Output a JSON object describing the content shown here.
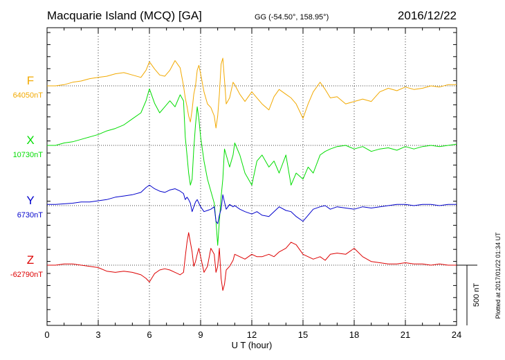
{
  "header": {
    "station": "Macquarie Island (MCQ)  [GA]",
    "coords": "GG (-54.50°, 158.95°)",
    "date": "2016/12/22"
  },
  "footer": {
    "plotted": "Plotted at 2017/01/22 01:34 UT"
  },
  "colors": {
    "F": "#f2a900",
    "X": "#00dd00",
    "Y": "#0000cc",
    "Z": "#dd0000",
    "axis": "#000000",
    "grid": "#000000"
  },
  "chart_data": {
    "type": "line",
    "xlabel": "U T (hour)",
    "xlim": [
      0,
      24
    ],
    "x_ticks": [
      0,
      3,
      6,
      9,
      12,
      15,
      18,
      21,
      24
    ],
    "scale_bar": {
      "label": "500 nT",
      "value_nT": 500
    },
    "units": "nT",
    "series": [
      {
        "name": "F",
        "baseline_label": "64050nT",
        "baseline_nT": 64050,
        "x": [
          0,
          0.5,
          1,
          1.5,
          2,
          2.5,
          3,
          3.5,
          4,
          4.5,
          5,
          5.5,
          5.8,
          6,
          6.3,
          6.6,
          6.9,
          7.2,
          7.5,
          7.8,
          8,
          8.1,
          8.2,
          8.3,
          8.4,
          8.5,
          8.6,
          8.7,
          8.8,
          8.9,
          9,
          9.2,
          9.4,
          9.6,
          9.8,
          9.9,
          10,
          10.1,
          10.2,
          10.3,
          10.4,
          10.5,
          10.7,
          10.9,
          11,
          11.3,
          11.6,
          12,
          12.3,
          12.6,
          13,
          13.3,
          13.6,
          14,
          14.3,
          14.6,
          15,
          15.3,
          15.6,
          16,
          16.3,
          16.6,
          17,
          17.5,
          18,
          18.5,
          19,
          19.5,
          20,
          20.5,
          21,
          21.5,
          22,
          22.5,
          23,
          23.5,
          24
        ],
        "y": [
          64050,
          64050,
          64060,
          64080,
          64090,
          64110,
          64120,
          64130,
          64150,
          64160,
          64140,
          64120,
          64180,
          64250,
          64190,
          64140,
          64130,
          64180,
          64260,
          64200,
          64050,
          63950,
          63880,
          63800,
          63750,
          63850,
          63980,
          64050,
          64180,
          64220,
          64150,
          64000,
          63900,
          63870,
          63800,
          63700,
          63800,
          63980,
          64230,
          64280,
          64100,
          63900,
          63950,
          64080,
          64060,
          63980,
          63920,
          64000,
          63950,
          63900,
          63850,
          63960,
          64020,
          63980,
          63950,
          63900,
          63780,
          63900,
          64000,
          64080,
          64020,
          63950,
          63960,
          63900,
          63920,
          63940,
          63920,
          64000,
          64030,
          64010,
          64040,
          64020,
          64030,
          64050,
          64040,
          64060,
          64060
        ]
      },
      {
        "name": "X",
        "baseline_label": "10730nT",
        "baseline_nT": 10730,
        "x": [
          0,
          0.5,
          1,
          1.5,
          2,
          2.5,
          3,
          3.5,
          4,
          4.5,
          5,
          5.5,
          5.8,
          6,
          6.3,
          6.6,
          6.9,
          7.2,
          7.5,
          7.8,
          8,
          8.1,
          8.2,
          8.3,
          8.4,
          8.5,
          8.6,
          8.7,
          8.8,
          8.9,
          9,
          9.2,
          9.4,
          9.6,
          9.8,
          9.9,
          10,
          10.1,
          10.2,
          10.3,
          10.4,
          10.5,
          10.7,
          10.9,
          11,
          11.3,
          11.6,
          12,
          12.3,
          12.6,
          13,
          13.3,
          13.6,
          14,
          14.3,
          14.6,
          15,
          15.3,
          15.6,
          16,
          16.3,
          16.6,
          17,
          17.5,
          18,
          18.5,
          19,
          19.5,
          20,
          20.5,
          21,
          21.5,
          22,
          22.5,
          23,
          23.5,
          24
        ],
        "y": [
          10730,
          10730,
          10750,
          10760,
          10780,
          10800,
          10820,
          10850,
          10870,
          10900,
          10950,
          11000,
          11100,
          11200,
          11080,
          11000,
          11050,
          11100,
          11050,
          11150,
          11100,
          10800,
          10650,
          10500,
          10400,
          10450,
          10700,
          10900,
          11050,
          10950,
          10800,
          10600,
          10450,
          10350,
          10250,
          10100,
          9900,
          10100,
          10300,
          10450,
          10700,
          10650,
          10550,
          10650,
          10750,
          10650,
          10500,
          10400,
          10600,
          10650,
          10550,
          10600,
          10500,
          10650,
          10400,
          10500,
          10450,
          10550,
          10500,
          10650,
          10680,
          10700,
          10720,
          10730,
          10700,
          10720,
          10680,
          10700,
          10710,
          10690,
          10720,
          10700,
          10720,
          10730,
          10720,
          10730,
          10740
        ]
      },
      {
        "name": "Y",
        "baseline_label": "6730nT",
        "baseline_nT": 6730,
        "x": [
          0,
          0.5,
          1,
          1.5,
          2,
          2.5,
          3,
          3.5,
          4,
          4.5,
          5,
          5.5,
          5.8,
          6,
          6.3,
          6.6,
          6.9,
          7.2,
          7.5,
          7.8,
          8,
          8.1,
          8.2,
          8.3,
          8.4,
          8.5,
          8.6,
          8.7,
          8.8,
          8.9,
          9,
          9.2,
          9.4,
          9.6,
          9.8,
          9.9,
          10,
          10.1,
          10.2,
          10.3,
          10.4,
          10.5,
          10.7,
          10.9,
          11,
          11.3,
          11.6,
          12,
          12.3,
          12.6,
          13,
          13.3,
          13.6,
          14,
          14.3,
          14.6,
          15,
          15.3,
          15.6,
          16,
          16.3,
          16.6,
          17,
          17.5,
          18,
          18.5,
          19,
          19.5,
          20,
          20.5,
          21,
          21.5,
          22,
          22.5,
          23,
          23.5,
          24
        ],
        "y": [
          6740,
          6740,
          6745,
          6750,
          6760,
          6760,
          6770,
          6780,
          6800,
          6810,
          6820,
          6840,
          6880,
          6900,
          6870,
          6850,
          6840,
          6860,
          6870,
          6850,
          6830,
          6780,
          6800,
          6780,
          6750,
          6680,
          6720,
          6760,
          6780,
          6750,
          6720,
          6680,
          6690,
          6700,
          6720,
          6600,
          6580,
          6650,
          6700,
          6820,
          6760,
          6700,
          6740,
          6720,
          6730,
          6700,
          6680,
          6660,
          6680,
          6650,
          6640,
          6680,
          6720,
          6690,
          6680,
          6640,
          6600,
          6650,
          6700,
          6720,
          6730,
          6700,
          6720,
          6710,
          6700,
          6720,
          6710,
          6720,
          6730,
          6740,
          6740,
          6730,
          6740,
          6740,
          6730,
          6740,
          6740
        ]
      },
      {
        "name": "Z",
        "baseline_label": "-62790nT",
        "baseline_nT": -62790,
        "x": [
          0,
          0.5,
          1,
          1.5,
          2,
          2.5,
          3,
          3.5,
          4,
          4.5,
          5,
          5.5,
          5.8,
          6,
          6.3,
          6.6,
          6.9,
          7.2,
          7.5,
          7.8,
          8,
          8.1,
          8.2,
          8.3,
          8.4,
          8.5,
          8.6,
          8.7,
          8.8,
          8.9,
          9,
          9.2,
          9.4,
          9.6,
          9.8,
          9.9,
          10,
          10.1,
          10.2,
          10.3,
          10.4,
          10.5,
          10.7,
          10.9,
          11,
          11.3,
          11.6,
          12,
          12.3,
          12.6,
          13,
          13.3,
          13.6,
          14,
          14.3,
          14.6,
          15,
          15.3,
          15.6,
          16,
          16.3,
          16.6,
          17,
          17.5,
          18,
          18.5,
          19,
          19.5,
          20,
          20.5,
          21,
          21.5,
          22,
          22.5,
          23,
          23.5,
          24
        ],
        "y": [
          -62790,
          -62790,
          -62780,
          -62780,
          -62790,
          -62800,
          -62810,
          -62840,
          -62850,
          -62840,
          -62850,
          -62870,
          -62900,
          -62930,
          -62860,
          -62830,
          -62820,
          -62830,
          -62850,
          -62870,
          -62850,
          -62720,
          -62600,
          -62520,
          -62600,
          -62680,
          -62800,
          -62760,
          -62700,
          -62650,
          -62720,
          -62850,
          -62800,
          -62650,
          -62700,
          -62850,
          -62800,
          -62650,
          -62900,
          -63000,
          -62950,
          -62830,
          -62800,
          -62750,
          -62700,
          -62720,
          -62740,
          -62700,
          -62720,
          -62720,
          -62700,
          -62720,
          -62680,
          -62650,
          -62600,
          -62620,
          -62700,
          -62720,
          -62740,
          -62720,
          -62750,
          -62700,
          -62690,
          -62700,
          -62650,
          -62720,
          -62760,
          -62770,
          -62780,
          -62780,
          -62770,
          -62780,
          -62780,
          -62790,
          -62780,
          -62790,
          -62790
        ]
      }
    ]
  }
}
